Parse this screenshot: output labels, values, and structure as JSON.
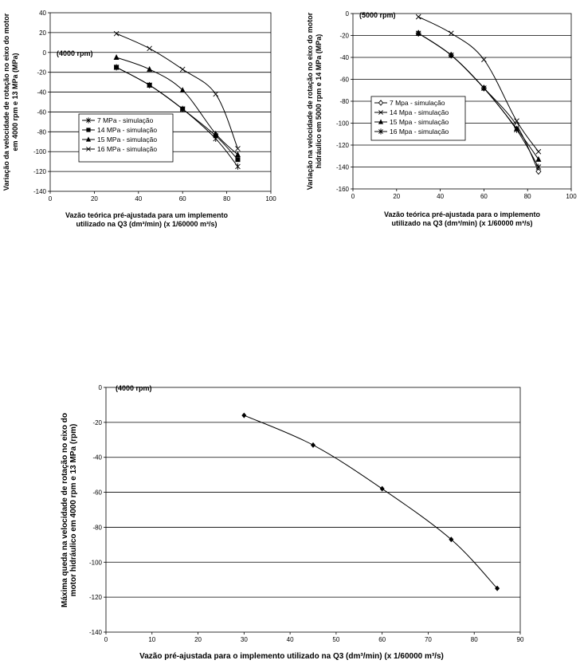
{
  "chart_data": [
    {
      "type": "line",
      "annotation": "(4000 rpm)",
      "ylabel": [
        "Variação da velocidade de rotação no eixo do motor",
        "em 4000 rpm e 13 MPa (MPa)"
      ],
      "xlabel": [
        "Vazão teórica pré-ajustada para um implemento",
        "utilizado na Q3 (dm³/min) (x 1/60000 m³/s)"
      ],
      "xlim": [
        0,
        100
      ],
      "ylim": [
        -140,
        40
      ],
      "xticks": [
        "0",
        "20",
        "40",
        "60",
        "80",
        "100"
      ],
      "yticks": [
        "40",
        "20",
        "0",
        "-20",
        "-40",
        "-60",
        "-80",
        "-100",
        "-120",
        "-140"
      ],
      "grid": "horizontal",
      "legend_position": "center-left",
      "series": [
        {
          "name": "7 MPa - simulação",
          "marker": "star",
          "x": [
            30,
            45,
            60,
            75,
            85
          ],
          "y": [
            -15,
            -33,
            -57,
            -87,
            -115
          ]
        },
        {
          "name": "14 MPa - simulação",
          "marker": "square",
          "x": [
            30,
            45,
            60,
            75,
            85
          ],
          "y": [
            -15,
            -33,
            -57,
            -84,
            -108
          ]
        },
        {
          "name": "15 MPa - simulação",
          "marker": "triangle",
          "x": [
            30,
            45,
            60,
            75,
            85
          ],
          "y": [
            -5,
            -17,
            -38,
            -82,
            -103
          ]
        },
        {
          "name": "16 MPa - simulação",
          "marker": "x",
          "x": [
            30,
            45,
            60,
            75,
            85
          ],
          "y": [
            19,
            4,
            -17,
            -42,
            -97
          ]
        }
      ]
    },
    {
      "type": "line",
      "annotation": "(5000 rpm)",
      "ylabel": [
        "Variação na velocidade de rotação no eixo do motor",
        "hidráulico em 5000 rpm e 14 MPa (MPa)"
      ],
      "xlabel": [
        "Vazão teórica pré-ajustada para o implemento",
        "utilizado na Q3 (dm³/min) (x 1/60000 m³/s)"
      ],
      "xlim": [
        0,
        100
      ],
      "ylim": [
        -160,
        0
      ],
      "xticks": [
        "0",
        "20",
        "40",
        "60",
        "80",
        "100"
      ],
      "yticks": [
        "0",
        "-20",
        "-40",
        "-60",
        "-80",
        "-100",
        "-120",
        "-140",
        "-160"
      ],
      "grid": "horizontal",
      "legend_position": "top-left",
      "series": [
        {
          "name": "7 Mpa - simulação",
          "marker": "diamond",
          "x": [
            30,
            45,
            60,
            75,
            85
          ],
          "y": [
            -18,
            -38,
            -68,
            -102,
            -144
          ]
        },
        {
          "name": "14 Mpa - simulação",
          "marker": "x",
          "x": [
            30,
            45,
            60,
            75,
            85
          ],
          "y": [
            -3,
            -18,
            -42,
            -98,
            -126
          ]
        },
        {
          "name": "15 Mpa - simulação",
          "marker": "triangle",
          "x": [
            30,
            45,
            60,
            75,
            85
          ],
          "y": [
            -18,
            -38,
            -68,
            -105,
            -133
          ]
        },
        {
          "name": "16 Mpa - simulação",
          "marker": "star",
          "x": [
            30,
            45,
            60,
            75,
            85
          ],
          "y": [
            -18,
            -38,
            -68,
            -106,
            -140
          ]
        }
      ]
    },
    {
      "type": "line",
      "annotation": "(4000 rpm)",
      "ylabel": [
        "Máxima queda na velocidade de rotação no eixo do",
        "motor hidráulico em 4000 rpm e 13 MPa (rpm)"
      ],
      "xlabel": [
        "Vazão pré-ajustada para o implemento utilizado na Q3 (dm³/min) (x 1/60000 m³/s)"
      ],
      "xlim": [
        0,
        90
      ],
      "ylim": [
        -140,
        0
      ],
      "xticks": [
        "0",
        "10",
        "20",
        "30",
        "40",
        "50",
        "60",
        "70",
        "80",
        "90"
      ],
      "yticks": [
        "0",
        "-20",
        "-40",
        "-60",
        "-80",
        "-100",
        "-120",
        "-140"
      ],
      "grid": "horizontal",
      "legend_position": "none",
      "series": [
        {
          "marker": "diamond",
          "x": [
            30,
            45,
            60,
            75,
            85
          ],
          "y": [
            -16,
            -33,
            -58,
            -87,
            -115
          ]
        }
      ]
    }
  ]
}
